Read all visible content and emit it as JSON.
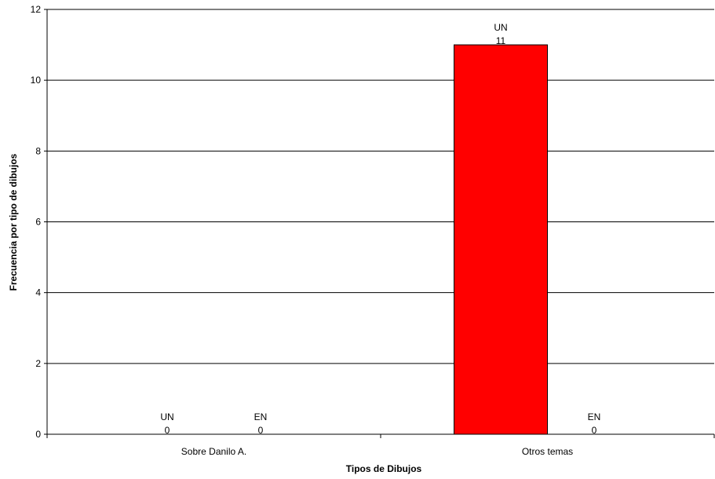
{
  "chart_data": {
    "type": "bar",
    "title": "",
    "xlabel": "Tipos de Dibujos",
    "ylabel": "Frecuencia por tipo de dibujos",
    "categories": [
      "Sobre Danilo A.",
      "Otros temas"
    ],
    "series": [
      {
        "name": "UN",
        "values": [
          0,
          11
        ],
        "color": "#ff0000"
      },
      {
        "name": "EN",
        "values": [
          0,
          0
        ],
        "color": "#0000ff"
      }
    ],
    "ylim": [
      0,
      12
    ],
    "yticks": [
      0,
      2,
      4,
      6,
      8,
      10,
      12
    ],
    "ytick_labels": [
      "0",
      "2",
      "4",
      "6",
      "8",
      "10",
      "12"
    ],
    "grid": true,
    "legend": "none",
    "bar_outline_color": "#000000",
    "gridline_color": "#000000"
  }
}
